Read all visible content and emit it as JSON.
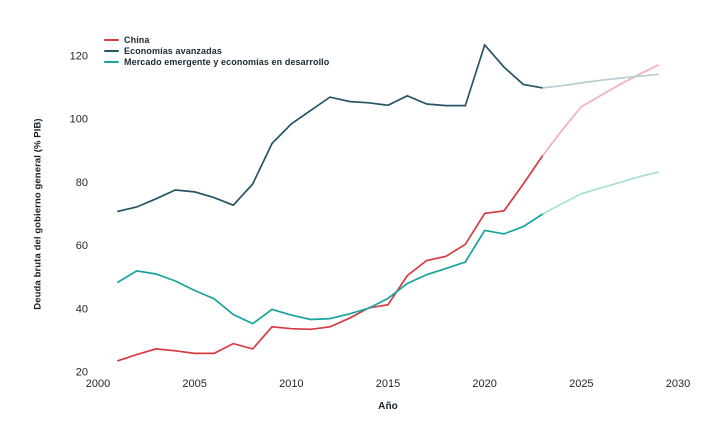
{
  "chart_data": {
    "type": "line",
    "xlabel": "Año",
    "ylabel": "Deuda bruta del gobierno general (% PIB)",
    "xlim": [
      2000,
      2030
    ],
    "ylim": [
      20,
      120
    ],
    "x_ticks": [
      2000,
      2005,
      2010,
      2015,
      2020,
      2025,
      2030
    ],
    "y_ticks": [
      20,
      40,
      60,
      80,
      100,
      120
    ],
    "grid": false,
    "legend_position": "top-left",
    "projection_start_year": 2023,
    "years": [
      2001,
      2002,
      2003,
      2004,
      2005,
      2006,
      2007,
      2008,
      2009,
      2010,
      2011,
      2012,
      2013,
      2014,
      2015,
      2016,
      2017,
      2018,
      2019,
      2020,
      2021,
      2022,
      2023,
      2024,
      2025,
      2026,
      2027,
      2028,
      2029
    ],
    "series": [
      {
        "name": "China",
        "color": "#d63b43",
        "projection_color": "#f4b0b6",
        "values": [
          23.5,
          25.5,
          27.3,
          26.7,
          25.9,
          25.9,
          29.0,
          27.3,
          34.3,
          33.7,
          33.5,
          34.3,
          37.0,
          40.3,
          41.3,
          50.5,
          55.3,
          56.6,
          60.4,
          70.2,
          71.0,
          79.5,
          88.5,
          96.5,
          104.0,
          107.5,
          111.0,
          114.2,
          117.2
        ]
      },
      {
        "name": "Economías avanzadas",
        "color": "#265565",
        "projection_color": "#b7cdd2",
        "values": [
          70.8,
          72.2,
          74.8,
          77.6,
          77.0,
          75.2,
          72.8,
          79.5,
          92.3,
          98.5,
          102.8,
          107.0,
          105.6,
          105.2,
          104.4,
          107.4,
          104.8,
          104.3,
          104.3,
          123.5,
          116.5,
          111.0,
          109.9,
          110.6,
          111.5,
          112.3,
          113.0,
          113.6,
          114.2
        ]
      },
      {
        "name": "Mercado emergente y economías en desarrollo",
        "color": "#17a39e",
        "projection_color": "#a8ded6",
        "values": [
          48.3,
          52.0,
          51.0,
          48.8,
          45.8,
          43.2,
          38.2,
          35.3,
          39.8,
          38.0,
          36.6,
          36.9,
          38.4,
          40.2,
          43.3,
          48.0,
          50.8,
          52.8,
          54.8,
          64.8,
          63.7,
          66.0,
          70.0,
          73.3,
          76.4,
          78.2,
          80.0,
          81.8,
          83.3
        ]
      }
    ],
    "text_color": "#1f2429"
  }
}
